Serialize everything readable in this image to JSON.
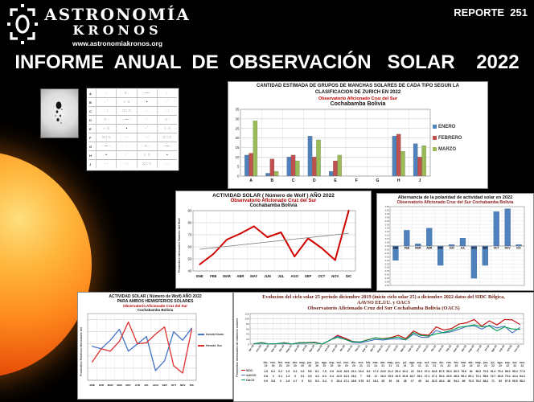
{
  "header": {
    "brand_line1": "ASTRONOMÍA",
    "brand_line2": "KRONOS",
    "website": "www.astronomiakronos.org",
    "report_label": "REPORTE  251"
  },
  "page_title": "INFORME  ANUAL  DE  OBSERVACIÓN   SOLAR    2022",
  "zurich_panel": {
    "row_labels": [
      "A",
      "B",
      "C",
      "D",
      "E",
      "F",
      "G",
      "H",
      "J"
    ]
  },
  "colors": {
    "enero_blue": "#4f81bd",
    "febrero_red": "#c0504d",
    "marzo_green": "#9bbb59",
    "wolf_red": "#d00000",
    "trend_gray": "#7f7f7f",
    "polarity_bar": "#4f81bd",
    "sidc_red": "#c00000",
    "aavso_blue": "#4472c4",
    "oacs_green": "#00a050"
  },
  "chart_data": [
    {
      "id": "zurich_bars",
      "type": "bar",
      "title": "CANTIDAD ESTIMADA DE GRUPOS DE MANCHAS SOLARES DE CADA TIPO SEGUN LA CLASIFICACION DE ZURICH EN 2022",
      "subtitle": "Observatorio Aficionado Cruz del Sur",
      "subtitle2": "Cochabamba Bolivia",
      "categories": [
        "A",
        "B",
        "C",
        "D",
        "E",
        "F",
        "G",
        "H",
        "J"
      ],
      "series": [
        {
          "name": "ENERO",
          "color": "#4f81bd",
          "values": [
            11,
            1.5,
            10,
            21,
            2.5,
            0,
            0,
            21,
            17
          ]
        },
        {
          "name": "FEBRERO",
          "color": "#c0504d",
          "values": [
            12,
            9,
            11,
            10,
            8,
            0,
            0,
            22,
            10
          ]
        },
        {
          "name": "MARZO",
          "color": "#9bbb59",
          "values": [
            29,
            2.5,
            8,
            19,
            11,
            0,
            0,
            13,
            16
          ]
        }
      ],
      "ylim": [
        0,
        35
      ],
      "yticks": [
        0,
        5,
        10,
        15,
        20,
        25,
        30,
        35
      ],
      "legend_position": "right"
    },
    {
      "id": "wolf",
      "type": "line",
      "title": "ACTIVIDAD SOLAR ( Número de Wolf )  AÑO 2022",
      "subtitle": "Observatorio Aficionado Cruz del Sur",
      "subtitle2": "Cochabamba Bolivia",
      "ylabel": "Promedios  mensuales   Número del Wolf",
      "categories": [
        "ENE",
        "FEB",
        "MAR",
        "ABR",
        "MAY",
        "JUN",
        "JUL",
        "AGO",
        "SEP",
        "OCT",
        "NOV",
        "DIC"
      ],
      "series": [
        {
          "name": "Número de Wolf",
          "color": "#d00000",
          "values": [
            45.5,
            54,
            66,
            71,
            77,
            68,
            72,
            52,
            67,
            59,
            49,
            90
          ]
        },
        {
          "name": "Tendencia",
          "color": "#7f7f7f",
          "marker": false,
          "values": [
            58,
            59.2,
            60.4,
            61.6,
            62.8,
            64,
            65.2,
            66.4,
            67.6,
            68.8,
            70,
            71.2
          ]
        }
      ],
      "ylim": [
        40,
        90
      ],
      "yticks": [
        40,
        50,
        60,
        70,
        80,
        90
      ]
    },
    {
      "id": "polarity",
      "type": "bar",
      "title": "Alternancia de la polaridad de actividad solar en 2022",
      "subtitle": "Observatorio Aficionado Cruz del Sur  Cochabamba Bolivia",
      "categories": [
        "ENE",
        "FEB",
        "MAR",
        "ABR",
        "MAY",
        "JUN",
        "JUL",
        "AGO",
        "SEP",
        "OCT",
        "NOV",
        "DIC"
      ],
      "values": [
        -0.2,
        0.22,
        0.03,
        0.25,
        -0.27,
        0.02,
        0.11,
        -0.45,
        -0.27,
        0.48,
        0.52,
        0.02
      ],
      "bar_color": "#4f81bd",
      "ylim": [
        -0.55,
        0.55
      ],
      "ytick_step": 0.05
    },
    {
      "id": "hemispheres",
      "type": "line",
      "title": "ACTIVIDAD SOLAR ( Número de Wolf) AÑO 2022",
      "title2": "PARA AMBOS HEMISFERIOS SOLARES",
      "subtitle": "Observatorio Aficionado Cruz del Sur",
      "subtitle2": "Cochabamba Bolivia",
      "ylabel": "Promedios Relativos Mensuales del",
      "categories": [
        "ENE",
        "FEB",
        "MAR",
        "ABR",
        "MAY",
        "JUN",
        "JUL",
        "AGO",
        "SEP",
        "OCT",
        "NOV",
        "DIC"
      ],
      "series": [
        {
          "name": "Hemisf Norte",
          "color": "#4472c4",
          "values": [
            28,
            26,
            33,
            42,
            24,
            30,
            36,
            8,
            16,
            40,
            33,
            43
          ]
        },
        {
          "name": "Hemisf. Sur",
          "color": "#e03030",
          "values": [
            15,
            26,
            24,
            32,
            48,
            30,
            31,
            38,
            44,
            12,
            6,
            42
          ]
        }
      ],
      "ylim": [
        0,
        55
      ],
      "yticks": [
        0,
        10,
        20,
        30,
        40,
        50
      ]
    },
    {
      "id": "cycle25",
      "type": "line",
      "title": "Evolucion del ciclo solar 25  periodo diciembre  2019 (inicio  ciclo solar 25) a diciembre  2022 datos del SIDC  Bélgica,",
      "title2": "AAVSO   EE.UU.  y OACS",
      "subtitle": "Observatorio Aficionado Cruz del Sur   Cochabamba Bolivia  (OACS)",
      "ylabel": "Promedios mensuales de números solares",
      "categories": [
        "dic-19",
        "ene-20",
        "feb-20",
        "mar-20",
        "abr-20",
        "may-20",
        "jun-20",
        "jul-20",
        "ago-20",
        "sep-20",
        "oct-20",
        "nov-20",
        "dic-20",
        "ene-21",
        "feb-21",
        "mar-21",
        "abr-21",
        "may-21",
        "jun-21",
        "jul-21",
        "ago-21",
        "sep-21",
        "oct-21",
        "nov-21",
        "dic-21",
        "ene-22",
        "feb-22",
        "mar-22",
        "abr-22",
        "may-22",
        "jun-22",
        "jul-22",
        "ago-22",
        "sep-22",
        "oct-22",
        "nov-22"
      ],
      "series": [
        {
          "name": "SIDC",
          "color": "#c00000",
          "values": [
            1.5,
            6.2,
            0.2,
            1.5,
            5.2,
            0.2,
            5.8,
            6.1,
            7.5,
            0.6,
            14.6,
            34.5,
            23.1,
            10.4,
            8.2,
            17.2,
            24.5,
            21.2,
            25.4,
            34.4,
            22,
            51.3,
            37.4,
            34.8,
            67.5,
            55.3,
            60.9,
            78.6,
            84,
            96.5,
            70.3,
            91.4,
            75.4,
            96.3,
            95.4,
            77.6
          ]
        },
        {
          "name": "AAVSO",
          "color": "#4472c4",
          "values": [
            0.8,
            4,
            0.1,
            1.3,
            3,
            0.1,
            3.9,
            4.3,
            6.3,
            0.4,
            14.9,
            31.3,
            18.4,
            7,
            5.8,
            11,
            18.3,
            15.9,
            19.9,
            20.8,
            16.7,
            39.1,
            27.1,
            27.2,
            53.4,
            43.9,
            48.8,
            58.4,
            69.1,
            72.1,
            58.9,
            74.7,
            63.8,
            70.4,
            44.4,
            64.3
          ]
        },
        {
          "name": "OACS",
          "color": "#00a050",
          "values": [
            0.9,
            5.8,
            0,
            1.8,
            4.7,
            0,
            5.2,
            5.3,
            5.4,
            0,
            15.4,
            27.1,
            18.6,
            9.75,
            8.7,
            16.1,
            25,
            20,
            24,
            28,
            17,
            45,
            34,
            31.5,
            40.4,
            46,
            54.2,
            66,
            70.3,
            76.2,
            68.2,
            71,
            52,
            67.5,
            59.5,
            58.2
          ]
        }
      ],
      "ylim": [
        0,
        120
      ],
      "yticks": [
        0,
        20,
        40,
        60,
        80,
        100,
        120
      ]
    }
  ]
}
